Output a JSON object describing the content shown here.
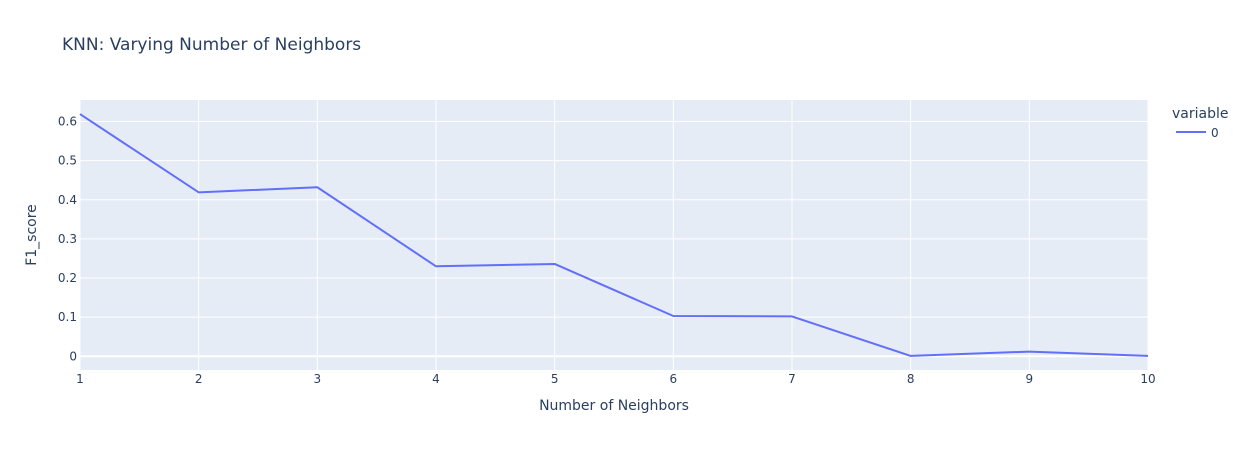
{
  "chart_data": {
    "type": "line",
    "title": "KNN: Varying Number of Neighbors",
    "xlabel": "Number of Neighbors",
    "ylabel": "F1_score",
    "x": [
      1,
      2,
      3,
      4,
      5,
      6,
      7,
      8,
      9,
      10
    ],
    "x_ticks": [
      "1",
      "2",
      "3",
      "4",
      "5",
      "6",
      "7",
      "8",
      "9",
      "10"
    ],
    "y_ticks": [
      "0",
      "0.1",
      "0.2",
      "0.3",
      "0.4",
      "0.5",
      "0.6"
    ],
    "xlim": [
      1,
      10
    ],
    "ylim": [
      -0.035,
      0.655
    ],
    "grid": true,
    "legend": {
      "title": "variable",
      "placement": "top-right"
    },
    "series": [
      {
        "name": "0",
        "values": [
          0.619,
          0.419,
          0.432,
          0.23,
          0.236,
          0.103,
          0.102,
          0.001,
          0.012,
          0.001
        ],
        "color": "#636efa"
      }
    ],
    "colors": {
      "plot_bg": "#e5ecf6",
      "grid": "#ffffff",
      "text": "#2a3f5f"
    }
  }
}
